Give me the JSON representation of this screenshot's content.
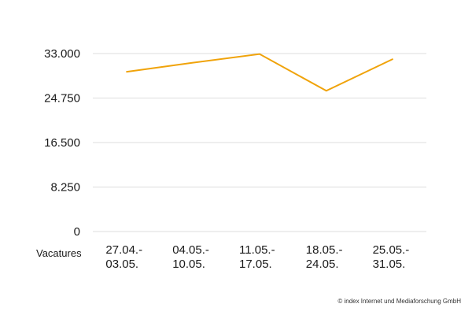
{
  "chart_data": {
    "type": "line",
    "categories": [
      "27.04.-\n03.05.",
      "04.05.-\n10.05.",
      "11.05.-\n17.05.",
      "18.05.-\n24.05.",
      "25.05.-\n31.05."
    ],
    "series": [
      {
        "values": [
          29600,
          31300,
          32900,
          26100,
          32000
        ]
      }
    ],
    "xlabel": "Vacatures",
    "ylabel": "",
    "title": "",
    "ylim": [
      0,
      33000
    ],
    "yticks": [
      "0",
      "8.250",
      "16.500",
      "24.750",
      "33.000"
    ],
    "ytick_values": [
      0,
      8250,
      16500,
      24750,
      33000
    ],
    "grid": true,
    "line_color": "#f0a30a",
    "grid_color": "#dddddd"
  },
  "credit": "© index Internet und Mediaforschung GmbH"
}
